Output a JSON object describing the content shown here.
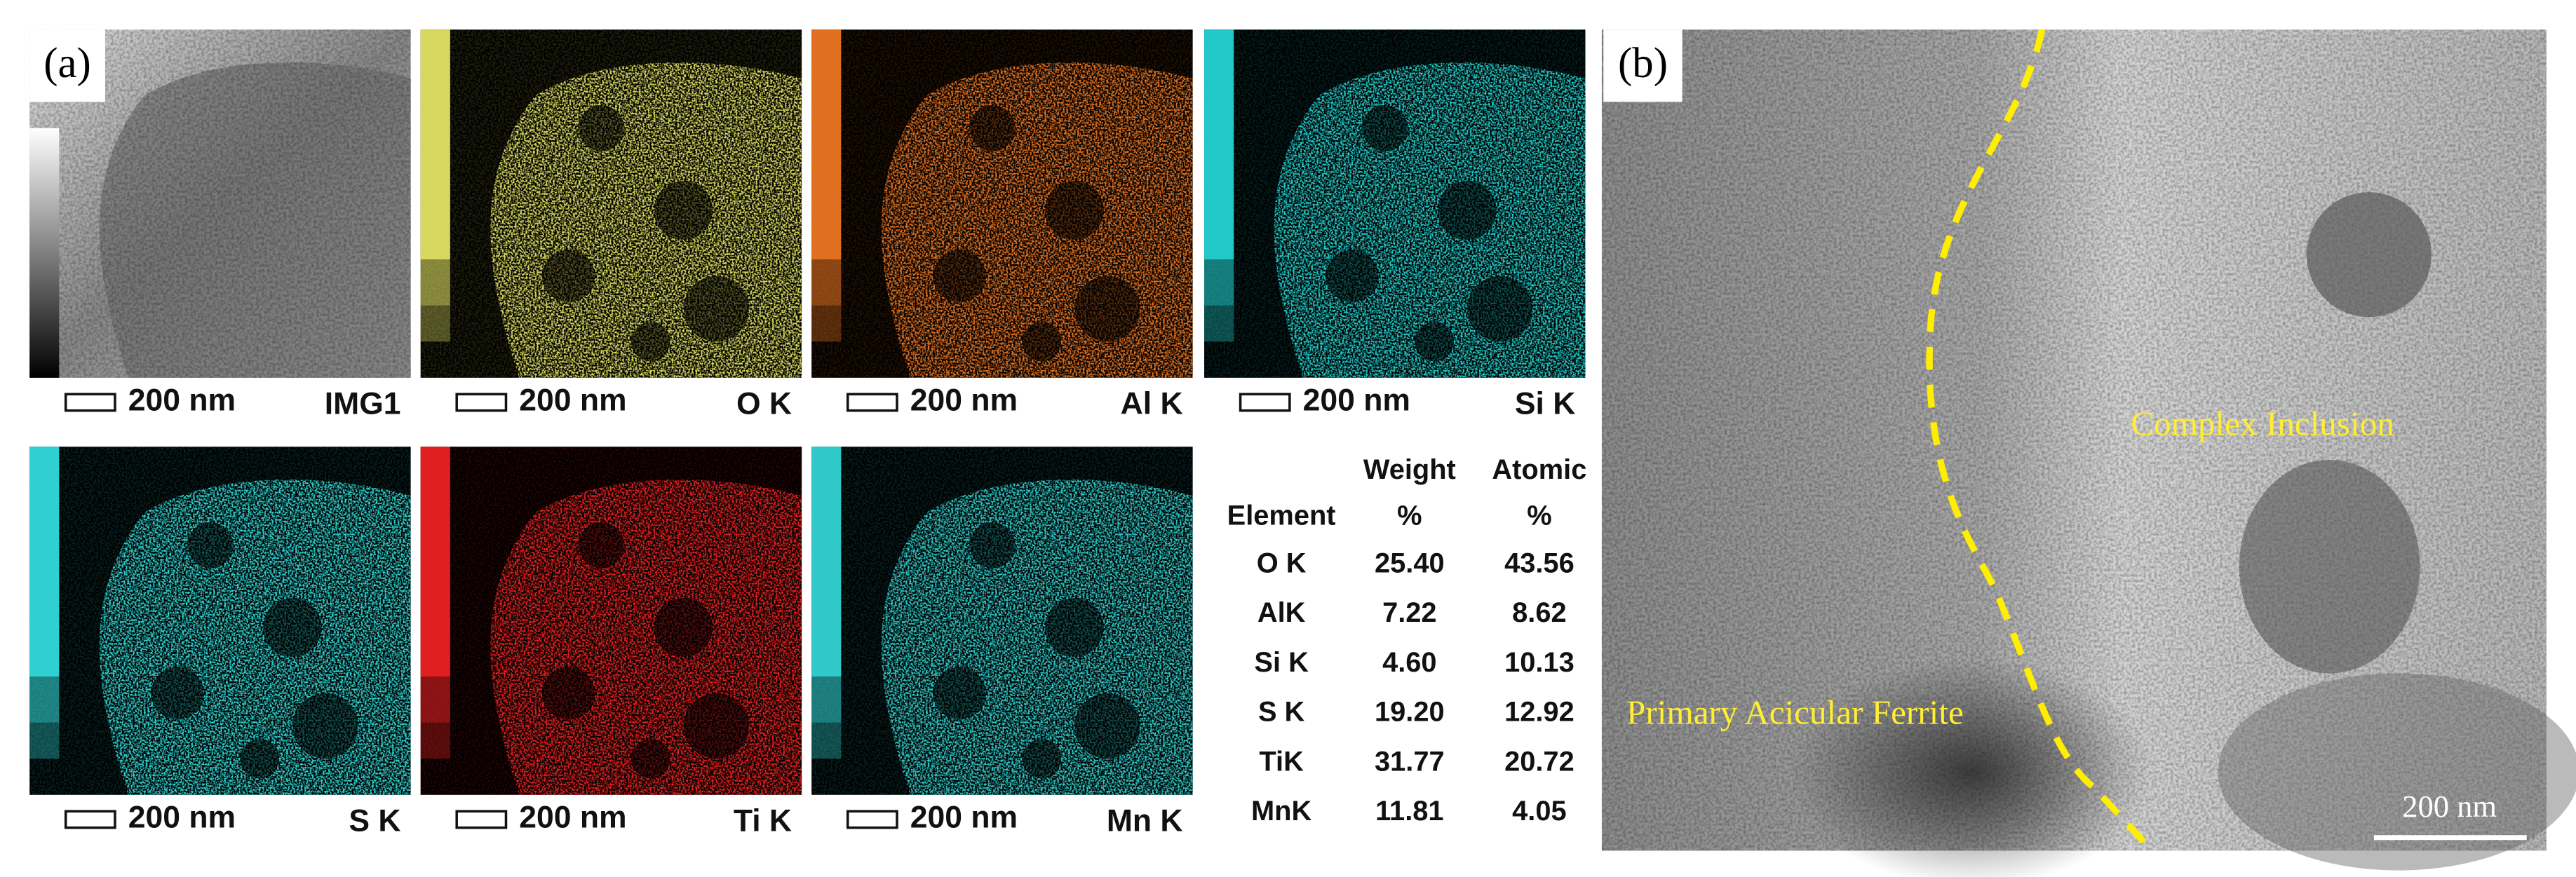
{
  "panel_labels": [
    "(a)",
    "(b)"
  ],
  "maps": [
    {
      "scale": "200 nm",
      "element": "IMG1"
    },
    {
      "scale": "200 nm",
      "element": "O K"
    },
    {
      "scale": "200 nm",
      "element": "Al K"
    },
    {
      "scale": "200 nm",
      "element": "Si K"
    },
    {
      "scale": "200 nm",
      "element": "S K"
    },
    {
      "scale": "200 nm",
      "element": "Ti K"
    },
    {
      "scale": "200 nm",
      "element": "Mn K"
    }
  ],
  "table": {
    "header": {
      "element": "Element",
      "weight": [
        "Weight",
        "%"
      ],
      "atomic": [
        "Atomic",
        "%"
      ]
    },
    "rows": [
      [
        "O K",
        "25.40",
        "43.56"
      ],
      [
        "AlK",
        "7.22",
        "8.62"
      ],
      [
        "Si K",
        "4.60",
        "10.13"
      ],
      [
        "S K",
        "19.20",
        "12.92"
      ],
      [
        "TiK",
        "31.77",
        "20.72"
      ],
      [
        "MnK",
        "11.81",
        "4.05"
      ]
    ]
  },
  "tem": {
    "annotations": [
      "Complex Inclusion",
      "Primary Acicular Ferrite"
    ],
    "scale": "200 nm"
  }
}
